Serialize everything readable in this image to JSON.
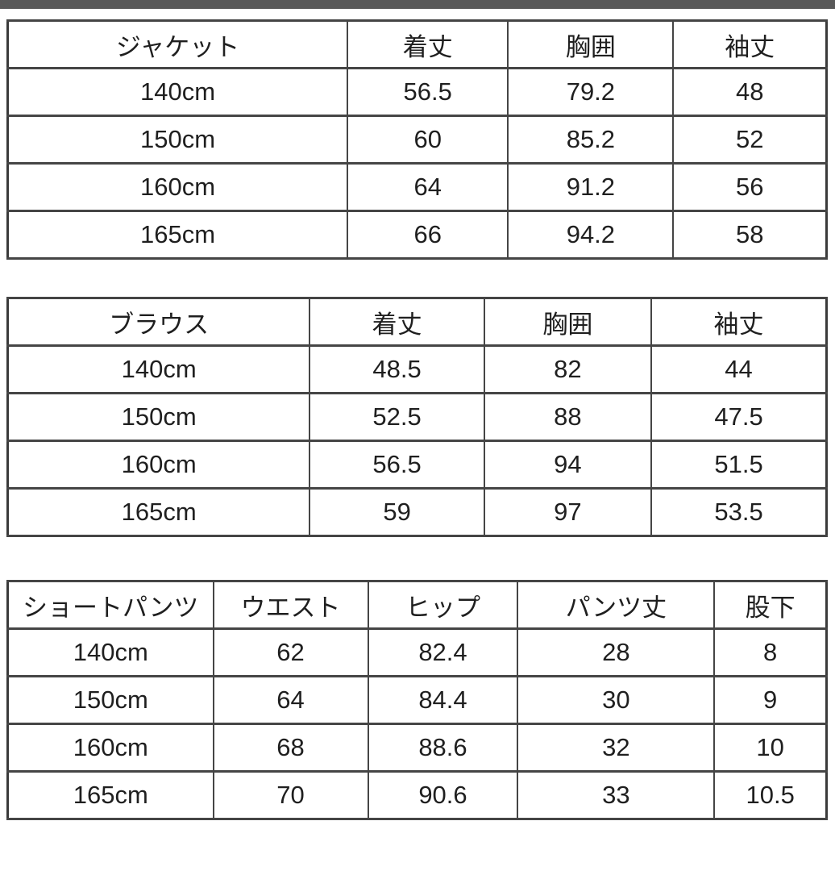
{
  "page": {
    "background": "#ffffff",
    "top_bar_color": "#595959",
    "border_color": "#454545",
    "text_color": "#1f1f1f"
  },
  "tables": [
    {
      "name": "jacket",
      "headers": [
        "ジャケット",
        "着丈",
        "胸囲",
        "袖丈"
      ],
      "col_widths": [
        "41.5%",
        "19.6%",
        "20.2%",
        "18.7%"
      ],
      "rows": [
        [
          "140cm",
          "56.5",
          "79.2",
          "48"
        ],
        [
          "150cm",
          "60",
          "85.2",
          "52"
        ],
        [
          "160cm",
          "64",
          "91.2",
          "56"
        ],
        [
          "165cm",
          "66",
          "94.2",
          "58"
        ]
      ]
    },
    {
      "name": "blouse",
      "headers": [
        "ブラウス",
        "着丈",
        "胸囲",
        "袖丈"
      ],
      "col_widths": [
        "36.9%",
        "21.3%",
        "20.4%",
        "21.4%"
      ],
      "rows": [
        [
          "140cm",
          "48.5",
          "82",
          "44"
        ],
        [
          "150cm",
          "52.5",
          "88",
          "47.5"
        ],
        [
          "160cm",
          "56.5",
          "94",
          "51.5"
        ],
        [
          "165cm",
          "59",
          "97",
          "53.5"
        ]
      ]
    },
    {
      "name": "short-pants",
      "headers": [
        "ショートパンツ",
        "ウエスト",
        "ヒップ",
        "パンツ丈",
        "股下"
      ],
      "col_widths": [
        "25.1%",
        "18.9%",
        "18.3%",
        "24.0%",
        "13.7%"
      ],
      "rows": [
        [
          "140cm",
          "62",
          "82.4",
          "28",
          "8"
        ],
        [
          "150cm",
          "64",
          "84.4",
          "30",
          "9"
        ],
        [
          "160cm",
          "68",
          "88.6",
          "32",
          "10"
        ],
        [
          "165cm",
          "70",
          "90.6",
          "33",
          "10.5"
        ]
      ]
    }
  ]
}
